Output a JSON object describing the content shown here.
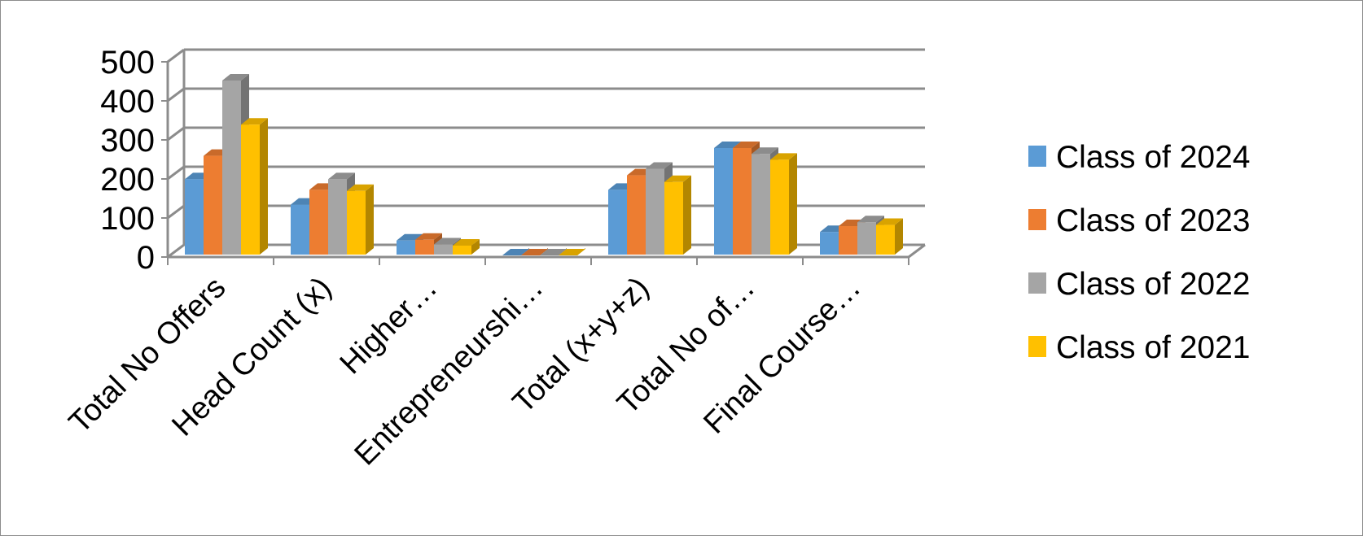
{
  "chart_data": {
    "type": "bar",
    "title": "",
    "xlabel": "",
    "ylabel": "",
    "ylim": [
      0,
      500
    ],
    "yticks": [
      0,
      100,
      200,
      300,
      400,
      500
    ],
    "grid": true,
    "legend_position": "right",
    "categories": [
      "Total No Offers",
      "Head Count (x)",
      "Higher…",
      "Entrepreneurshi…",
      "Total (x+y+z)",
      "Total No of…",
      "Final Course…"
    ],
    "series": [
      {
        "name": "Class of 2024",
        "color": "#5B9BD5",
        "values": [
          195,
          130,
          38,
          0,
          168,
          275,
          60
        ]
      },
      {
        "name": "Class of 2023",
        "color": "#ED7D31",
        "values": [
          255,
          168,
          40,
          0,
          205,
          275,
          75
        ]
      },
      {
        "name": "Class of 2022",
        "color": "#A5A5A5",
        "values": [
          448,
          195,
          28,
          0,
          222,
          260,
          85
        ]
      },
      {
        "name": "Class of 2021",
        "color": "#FFC000",
        "values": [
          335,
          165,
          25,
          0,
          188,
          245,
          78
        ]
      }
    ]
  }
}
